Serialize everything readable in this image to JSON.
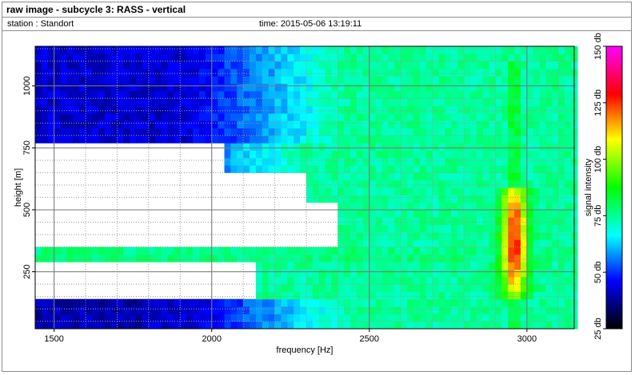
{
  "window": {
    "title": "raw image - subcycle 3: RASS - vertical",
    "station": "station : Standort",
    "time": "time: 2015-05-06 13:19:11"
  },
  "chart_data": {
    "type": "heatmap",
    "title": "raw image - subcycle 3: RASS - vertical",
    "xlabel": "frequency [Hz]",
    "ylabel": "height [m]",
    "colorbar_label": "signal intensity",
    "xlim": [
      1440,
      3150
    ],
    "ylim": [
      20,
      1160
    ],
    "x_ticks": [
      1500,
      2000,
      2500,
      3000
    ],
    "y_ticks": [
      250,
      500,
      750,
      1000
    ],
    "colorbar_range": [
      25,
      150
    ],
    "colorbar_ticks": [
      25,
      50,
      75,
      100,
      125,
      150
    ],
    "colorbar_tick_labels": [
      "25 db",
      "50 db",
      "75 db",
      "100 db",
      "125 db",
      "150 db"
    ],
    "colorbar_colors": [
      "#000000",
      "#0000ff",
      "#00ffff",
      "#00ff00",
      "#ffff00",
      "#ff0000",
      "#ff00ff"
    ],
    "grid": true,
    "cell_width_hz": 20,
    "cell_height_m": 30,
    "background_level_db": 75,
    "blue_region_level_db": 42,
    "cyan_transition_level_db": 60,
    "rass_peak_frequency_hz": 2960,
    "rass_peak_level_db": 128,
    "rass_peak_height_range_m": [
      150,
      600
    ],
    "horizontal_band_height_range_m": [
      290,
      340
    ],
    "missing_data_regions": [
      {
        "height_range_m": [
          650,
          780
        ],
        "frequency_range_hz": [
          1440,
          2050
        ]
      },
      {
        "height_range_m": [
          520,
          650
        ],
        "frequency_range_hz": [
          1440,
          2300
        ]
      },
      {
        "height_range_m": [
          360,
          520
        ],
        "frequency_range_hz": [
          1440,
          2400
        ]
      },
      {
        "height_range_m": [
          140,
          290
        ],
        "frequency_range_hz": [
          1440,
          2150
        ]
      }
    ]
  }
}
